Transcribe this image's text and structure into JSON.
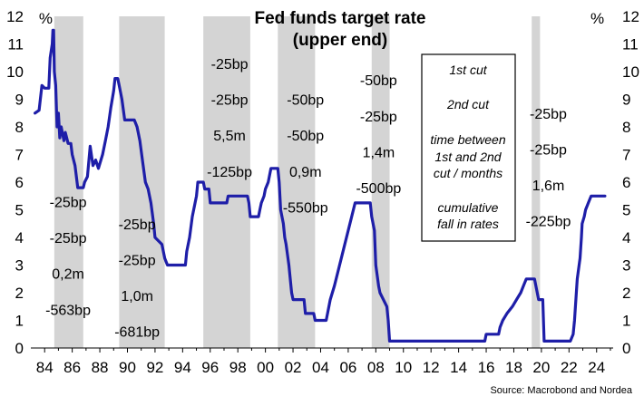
{
  "chart_data": {
    "type": "line",
    "title_lines": [
      "Fed funds target rate",
      "(upper end)"
    ],
    "unit_left": "%",
    "unit_right": "%",
    "source": "Source: Macrobond and Nordea",
    "x_tick_labels": [
      "84",
      "86",
      "88",
      "90",
      "92",
      "94",
      "96",
      "98",
      "00",
      "02",
      "04",
      "06",
      "08",
      "10",
      "12",
      "14",
      "16",
      "18",
      "20",
      "22",
      "24"
    ],
    "y_ticks": [
      0,
      1,
      2,
      3,
      4,
      5,
      6,
      7,
      8,
      9,
      10,
      11,
      12
    ],
    "xlim": [
      1983.0,
      2025.2
    ],
    "ylim": [
      0,
      12
    ],
    "colors": {
      "line": "#1e1ea8",
      "recession": "#d4d4d4"
    },
    "recessions": [
      [
        1984.7,
        1986.8
      ],
      [
        1989.4,
        1992.7
      ],
      [
        1995.5,
        1998.9
      ],
      [
        2000.9,
        2003.6
      ],
      [
        2007.7,
        2009.0
      ],
      [
        2019.3,
        2019.9
      ]
    ],
    "series": [
      {
        "values": [
          [
            1983.3,
            8.5
          ],
          [
            1983.6,
            8.6
          ],
          [
            1983.8,
            9.5
          ],
          [
            1984.0,
            9.4
          ],
          [
            1984.3,
            9.4
          ],
          [
            1984.4,
            10.5
          ],
          [
            1984.55,
            11.0
          ],
          [
            1984.6,
            11.5
          ],
          [
            1984.65,
            11.5
          ],
          [
            1984.7,
            10.0
          ],
          [
            1984.8,
            9.5
          ],
          [
            1984.9,
            8.0
          ],
          [
            1985.0,
            8.5
          ],
          [
            1985.1,
            7.6
          ],
          [
            1985.2,
            8.0
          ],
          [
            1985.4,
            7.5
          ],
          [
            1985.5,
            7.8
          ],
          [
            1985.7,
            7.4
          ],
          [
            1985.9,
            7.4
          ],
          [
            1986.0,
            7.0
          ],
          [
            1986.2,
            6.6
          ],
          [
            1986.4,
            5.8
          ],
          [
            1986.8,
            5.8
          ],
          [
            1986.9,
            6.0
          ],
          [
            1987.1,
            6.2
          ],
          [
            1987.3,
            7.3
          ],
          [
            1987.5,
            6.6
          ],
          [
            1987.7,
            6.8
          ],
          [
            1987.9,
            6.5
          ],
          [
            1988.2,
            7.0
          ],
          [
            1988.4,
            7.5
          ],
          [
            1988.6,
            8.0
          ],
          [
            1988.8,
            8.7
          ],
          [
            1989.0,
            9.3
          ],
          [
            1989.1,
            9.75
          ],
          [
            1989.3,
            9.75
          ],
          [
            1989.4,
            9.5
          ],
          [
            1989.6,
            9.0
          ],
          [
            1989.8,
            8.25
          ],
          [
            1990.5,
            8.25
          ],
          [
            1990.7,
            8.0
          ],
          [
            1990.9,
            7.5
          ],
          [
            1991.1,
            6.75
          ],
          [
            1991.3,
            6.0
          ],
          [
            1991.5,
            5.75
          ],
          [
            1991.7,
            5.25
          ],
          [
            1991.9,
            4.5
          ],
          [
            1992.0,
            4.0
          ],
          [
            1992.5,
            3.75
          ],
          [
            1992.7,
            3.25
          ],
          [
            1992.9,
            3.0
          ],
          [
            1993.0,
            3.0
          ],
          [
            1994.2,
            3.0
          ],
          [
            1994.3,
            3.5
          ],
          [
            1994.5,
            4.0
          ],
          [
            1994.7,
            4.75
          ],
          [
            1995.0,
            5.5
          ],
          [
            1995.1,
            6.0
          ],
          [
            1995.5,
            6.0
          ],
          [
            1995.6,
            5.75
          ],
          [
            1995.9,
            5.75
          ],
          [
            1996.0,
            5.25
          ],
          [
            1997.2,
            5.25
          ],
          [
            1997.3,
            5.5
          ],
          [
            1998.7,
            5.5
          ],
          [
            1998.8,
            5.25
          ],
          [
            1998.9,
            4.75
          ],
          [
            1999.5,
            4.75
          ],
          [
            1999.6,
            5.0
          ],
          [
            1999.7,
            5.25
          ],
          [
            1999.9,
            5.5
          ],
          [
            2000.0,
            5.75
          ],
          [
            2000.2,
            6.0
          ],
          [
            2000.4,
            6.5
          ],
          [
            2000.9,
            6.5
          ],
          [
            2001.0,
            6.0
          ],
          [
            2001.1,
            5.0
          ],
          [
            2001.3,
            4.5
          ],
          [
            2001.4,
            4.0
          ],
          [
            2001.5,
            3.75
          ],
          [
            2001.7,
            3.0
          ],
          [
            2001.8,
            2.5
          ],
          [
            2001.9,
            2.0
          ],
          [
            2002.0,
            1.75
          ],
          [
            2002.8,
            1.75
          ],
          [
            2002.9,
            1.25
          ],
          [
            2003.5,
            1.25
          ],
          [
            2003.6,
            1.0
          ],
          [
            2004.4,
            1.0
          ],
          [
            2004.5,
            1.25
          ],
          [
            2004.7,
            1.75
          ],
          [
            2005.0,
            2.25
          ],
          [
            2005.5,
            3.25
          ],
          [
            2006.0,
            4.25
          ],
          [
            2006.5,
            5.25
          ],
          [
            2007.6,
            5.25
          ],
          [
            2007.7,
            4.75
          ],
          [
            2007.9,
            4.25
          ],
          [
            2008.0,
            3.0
          ],
          [
            2008.2,
            2.25
          ],
          [
            2008.3,
            2.0
          ],
          [
            2008.8,
            1.5
          ],
          [
            2008.9,
            1.0
          ],
          [
            2009.0,
            0.25
          ],
          [
            2015.9,
            0.25
          ],
          [
            2016.0,
            0.5
          ],
          [
            2016.9,
            0.5
          ],
          [
            2017.0,
            0.75
          ],
          [
            2017.2,
            1.0
          ],
          [
            2017.5,
            1.25
          ],
          [
            2017.9,
            1.5
          ],
          [
            2018.2,
            1.75
          ],
          [
            2018.5,
            2.0
          ],
          [
            2018.7,
            2.25
          ],
          [
            2018.9,
            2.5
          ],
          [
            2019.5,
            2.5
          ],
          [
            2019.6,
            2.25
          ],
          [
            2019.7,
            2.0
          ],
          [
            2019.8,
            1.75
          ],
          [
            2020.1,
            1.75
          ],
          [
            2020.2,
            0.25
          ],
          [
            2022.1,
            0.25
          ],
          [
            2022.3,
            0.5
          ],
          [
            2022.4,
            1.0
          ],
          [
            2022.5,
            1.75
          ],
          [
            2022.6,
            2.5
          ],
          [
            2022.8,
            3.25
          ],
          [
            2022.9,
            4.0
          ],
          [
            2022.95,
            4.5
          ],
          [
            2023.1,
            4.75
          ],
          [
            2023.2,
            5.0
          ],
          [
            2023.4,
            5.25
          ],
          [
            2023.6,
            5.5
          ],
          [
            2024.6,
            5.5
          ]
        ]
      }
    ],
    "annotations": [
      {
        "x": 1985.7,
        "lines": [
          "-25bp",
          "-25bp",
          "0,2m",
          "-563bp"
        ],
        "y_first": 5.3,
        "y_step": 1.3
      },
      {
        "x": 1990.7,
        "lines": [
          "-25bp",
          "-25bp",
          "1,0m",
          "-681bp"
        ],
        "y_first": 4.5,
        "y_step": 1.3
      },
      {
        "x": 1997.4,
        "lines": [
          "-25bp",
          "-25bp",
          "5,5m",
          "-125bp"
        ],
        "y_first": 10.3,
        "y_step": 1.3
      },
      {
        "x": 2002.9,
        "lines": [
          "-50bp",
          "-50bp",
          "0,9m",
          "-550bp"
        ],
        "y_first": 9.0,
        "y_step": 1.3
      },
      {
        "x": 2008.2,
        "lines": [
          "-50bp",
          "-25bp",
          "1,4m",
          "-500bp"
        ],
        "y_first": 9.7,
        "y_step": 1.3
      },
      {
        "x": 2020.5,
        "lines": [
          "-25bp",
          "-25bp",
          "1,6m",
          "-225bp"
        ],
        "y_first": 8.5,
        "y_step": 1.3
      }
    ],
    "legend": {
      "position": "top-right",
      "items": [
        "1st cut",
        "2nd cut",
        "time between",
        "1st and 2nd",
        "cut / months",
        "cumulative",
        "fall in rates"
      ]
    }
  }
}
